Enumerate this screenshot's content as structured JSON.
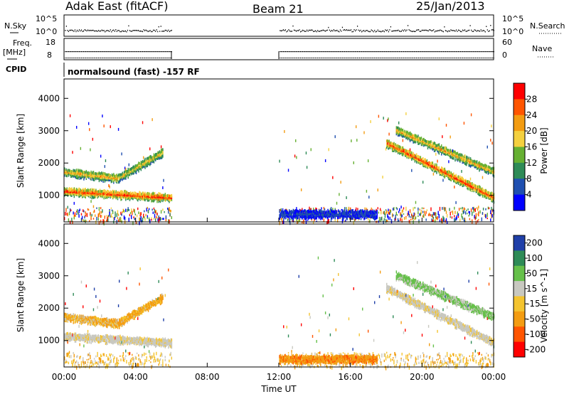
{
  "header": {
    "station": "Adak East (fitACF)",
    "beam": "Beam 21",
    "date": "25/Jan/2013"
  },
  "top_panels": {
    "nsky_label": "N.Sky",
    "nsearch_label": "N.Search",
    "nsky_ticks": [
      "10^5",
      "10^0"
    ],
    "nsearch_ticks": [
      "10^5",
      "10^0"
    ],
    "freq_label_1": "Freq.",
    "freq_label_2": "[MHz]",
    "freq_ticks": [
      "18",
      "8"
    ],
    "nave_label": "Nave",
    "nave_ticks": [
      "60",
      "0"
    ],
    "cpid_label": "CPID",
    "cpid_text": "normalsound (fast) -157 RF"
  },
  "chart_data": [
    {
      "type": "heatmap",
      "title": "",
      "xlabel": "Time UT",
      "ylabel": "Slant Range [km]",
      "x_ticks": [
        "00:00",
        "04:00",
        "08:00",
        "12:00",
        "16:00",
        "20:00",
        "00:00"
      ],
      "xlim_hours": [
        0,
        24
      ],
      "y_ticks": [
        1000,
        2000,
        3000,
        4000
      ],
      "ylim": [
        180,
        4600
      ],
      "data_gaps_hours": [
        [
          6,
          12
        ]
      ],
      "colorbar_label": "Power [dB]",
      "colorbar_ticks": [
        4,
        8,
        12,
        16,
        20,
        24,
        28
      ],
      "color_range": [
        0,
        32
      ],
      "colors": [
        "#0000ff",
        "#1f4fb0",
        "#2e8b57",
        "#66b032",
        "#f4d03f",
        "#f39c12",
        "#ff5500",
        "#ff0000"
      ],
      "echo_bands": [
        {
          "t_start": 0.0,
          "t_end": 6.0,
          "range_start_km": 1100,
          "range_end_km": 900,
          "strength_db": 28
        },
        {
          "t_start": 0.0,
          "t_end": 3.0,
          "range_start_km": 1700,
          "range_end_km": 1500,
          "strength_db": 22
        },
        {
          "t_start": 3.0,
          "t_end": 5.5,
          "range_start_km": 1500,
          "range_end_km": 2300,
          "strength_db": 20
        },
        {
          "t_start": 18.0,
          "t_end": 24.0,
          "range_start_km": 2600,
          "range_end_km": 900,
          "strength_db": 28
        },
        {
          "t_start": 18.5,
          "t_end": 24.0,
          "range_start_km": 3000,
          "range_end_km": 1700,
          "strength_db": 22
        },
        {
          "t_start": 12.0,
          "t_end": 17.5,
          "range_start_km": 400,
          "range_end_km": 400,
          "strength_db": 6
        }
      ]
    },
    {
      "type": "heatmap",
      "title": "",
      "xlabel": "Time UT",
      "ylabel": "Slant Range [km]",
      "x_ticks": [
        "00:00",
        "04:00",
        "08:00",
        "12:00",
        "16:00",
        "20:00",
        "00:00"
      ],
      "xlim_hours": [
        0,
        24
      ],
      "y_ticks": [
        1000,
        2000,
        3000,
        4000
      ],
      "ylim": [
        180,
        4600
      ],
      "data_gaps_hours": [
        [
          6,
          12
        ]
      ],
      "colorbar_label": "Velocity [m s^-1]",
      "colorbar_ticks": [
        "200",
        "100",
        "50",
        "15",
        "-15",
        "-50",
        "-100",
        "-200"
      ],
      "colors": [
        "#1f3fa8",
        "#2e8b57",
        "#66c04a",
        "#c8c8c0",
        "#f4c430",
        "#f39c12",
        "#ff5500",
        "#ff0000"
      ],
      "echo_bands": [
        {
          "t_start": 0.0,
          "t_end": 6.0,
          "range_start_km": 1100,
          "range_end_km": 900,
          "velocity": 0
        },
        {
          "t_start": 0.0,
          "t_end": 3.0,
          "range_start_km": 1700,
          "range_end_km": 1500,
          "velocity": -30
        },
        {
          "t_start": 3.0,
          "t_end": 5.5,
          "range_start_km": 1500,
          "range_end_km": 2300,
          "velocity": -40
        },
        {
          "t_start": 18.0,
          "t_end": 24.0,
          "range_start_km": 2600,
          "range_end_km": 900,
          "velocity": 0
        },
        {
          "t_start": 18.5,
          "t_end": 24.0,
          "range_start_km": 3000,
          "range_end_km": 1700,
          "velocity": 40
        },
        {
          "t_start": 12.0,
          "t_end": 17.5,
          "range_start_km": 400,
          "range_end_km": 400,
          "velocity": -60
        }
      ]
    }
  ]
}
